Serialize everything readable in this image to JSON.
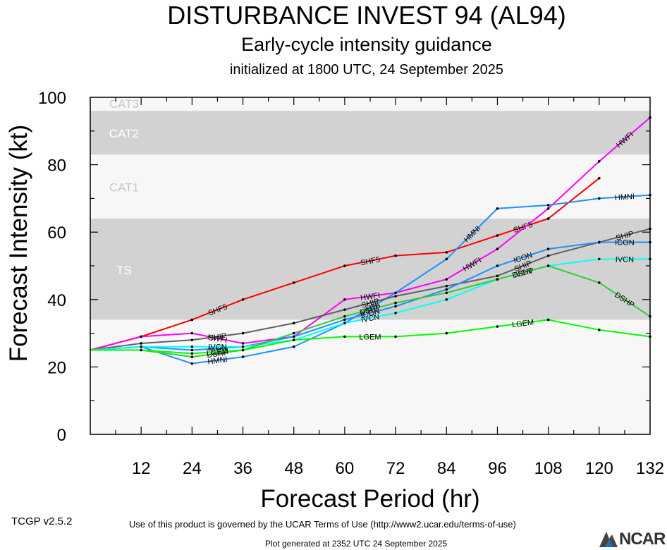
{
  "header": {
    "title": "DISTURBANCE INVEST 94 (AL94)",
    "subtitle": "Early-cycle intensity guidance",
    "init": "initialized at 1800 UTC, 24 September 2025"
  },
  "footer": {
    "version": "TCGP v2.5.2",
    "terms": "Use of this product is governed by the UCAR Terms of Use (http://www2.ucar.edu/terms-of-use)",
    "generated": "Plot generated at 2352 UTC   24 September 2025",
    "logo_text": "NCAR"
  },
  "chart_data": {
    "type": "line",
    "xlabel": "Forecast Period (hr)",
    "ylabel": "Forecast Intensity (kt)",
    "xlim": [
      0,
      132
    ],
    "ylim": [
      0,
      100
    ],
    "x_ticks": [
      12,
      24,
      36,
      48,
      60,
      72,
      84,
      96,
      108,
      120,
      132
    ],
    "y_ticks": [
      0,
      20,
      40,
      60,
      80,
      100
    ],
    "grid": false,
    "bands": [
      {
        "label": "TS",
        "from": 34,
        "to": 64,
        "color": "#d2d2d2"
      },
      {
        "label": "CAT1",
        "from": 64,
        "to": 83,
        "color": "#f7f7f7"
      },
      {
        "label": "CAT2",
        "from": 83,
        "to": 96,
        "color": "#d2d2d2"
      },
      {
        "label": "CAT3",
        "from": 96,
        "to": 100,
        "color": "#f7f7f7"
      }
    ],
    "below_band_color": "#f7f7f7",
    "series": [
      {
        "name": "SHF5",
        "color": "#ff0000",
        "label_at": [
          24,
          60,
          96
        ],
        "points": [
          [
            0,
            25
          ],
          [
            12,
            29
          ],
          [
            24,
            34
          ],
          [
            36,
            40
          ],
          [
            48,
            45
          ],
          [
            60,
            50
          ],
          [
            72,
            53
          ],
          [
            84,
            54
          ],
          [
            96,
            59
          ],
          [
            108,
            64
          ],
          [
            120,
            76
          ]
        ]
      },
      {
        "name": "HWFI",
        "color": "#ff00ff",
        "label_at": [
          24,
          60,
          84,
          120
        ],
        "points": [
          [
            0,
            25
          ],
          [
            12,
            29
          ],
          [
            24,
            30
          ],
          [
            36,
            27
          ],
          [
            48,
            29
          ],
          [
            60,
            40
          ],
          [
            72,
            42
          ],
          [
            84,
            46
          ],
          [
            96,
            55
          ],
          [
            108,
            67
          ],
          [
            120,
            81
          ],
          [
            132,
            94
          ]
        ]
      },
      {
        "name": "HMNI",
        "color": "#1e90ff",
        "label_at": [
          24,
          60,
          84,
          120
        ],
        "points": [
          [
            0,
            25
          ],
          [
            12,
            26
          ],
          [
            24,
            21
          ],
          [
            36,
            23
          ],
          [
            48,
            26
          ],
          [
            60,
            33
          ],
          [
            72,
            42
          ],
          [
            84,
            52
          ],
          [
            96,
            67
          ],
          [
            108,
            68
          ],
          [
            120,
            70
          ],
          [
            132,
            71
          ]
        ]
      },
      {
        "name": "SHIP",
        "color": "#606060",
        "label_at": [
          24,
          60,
          96,
          120
        ],
        "points": [
          [
            0,
            25
          ],
          [
            12,
            27
          ],
          [
            24,
            28
          ],
          [
            36,
            30
          ],
          [
            48,
            33
          ],
          [
            60,
            37
          ],
          [
            72,
            41
          ],
          [
            84,
            44
          ],
          [
            96,
            47
          ],
          [
            108,
            53
          ],
          [
            120,
            57
          ],
          [
            132,
            61
          ]
        ]
      },
      {
        "name": "ICON",
        "color": "#1e90ff",
        "label_at": [
          24,
          60,
          96,
          120
        ],
        "points": [
          [
            0,
            25
          ],
          [
            12,
            26
          ],
          [
            24,
            25
          ],
          [
            36,
            26
          ],
          [
            48,
            29
          ],
          [
            60,
            34
          ],
          [
            72,
            38
          ],
          [
            84,
            43
          ],
          [
            96,
            50
          ],
          [
            108,
            55
          ],
          [
            120,
            57
          ],
          [
            132,
            57
          ]
        ]
      },
      {
        "name": "IVCN",
        "color": "#00ffff",
        "label_at": [
          24,
          60,
          96,
          120
        ],
        "points": [
          [
            0,
            25
          ],
          [
            12,
            26
          ],
          [
            24,
            26
          ],
          [
            36,
            26
          ],
          [
            48,
            28
          ],
          [
            60,
            33
          ],
          [
            72,
            36
          ],
          [
            84,
            40
          ],
          [
            96,
            46
          ],
          [
            108,
            50
          ],
          [
            120,
            52
          ],
          [
            132,
            52
          ]
        ]
      },
      {
        "name": "DSHP",
        "color": "#32cd32",
        "label_at": [
          24,
          60,
          96,
          120
        ],
        "points": [
          [
            0,
            25
          ],
          [
            12,
            25
          ],
          [
            24,
            23
          ],
          [
            36,
            25
          ],
          [
            48,
            30
          ],
          [
            60,
            35
          ],
          [
            72,
            39
          ],
          [
            84,
            42
          ],
          [
            96,
            46
          ],
          [
            108,
            50
          ],
          [
            120,
            45
          ],
          [
            132,
            35
          ]
        ]
      },
      {
        "name": "LGEM",
        "color": "#00ff00",
        "label_at": [
          24,
          60,
          96
        ],
        "points": [
          [
            0,
            25
          ],
          [
            12,
            25
          ],
          [
            24,
            24
          ],
          [
            36,
            25
          ],
          [
            48,
            28
          ],
          [
            60,
            29
          ],
          [
            72,
            29
          ],
          [
            84,
            30
          ],
          [
            96,
            32
          ],
          [
            108,
            34
          ],
          [
            120,
            31
          ],
          [
            132,
            29
          ]
        ]
      }
    ]
  }
}
